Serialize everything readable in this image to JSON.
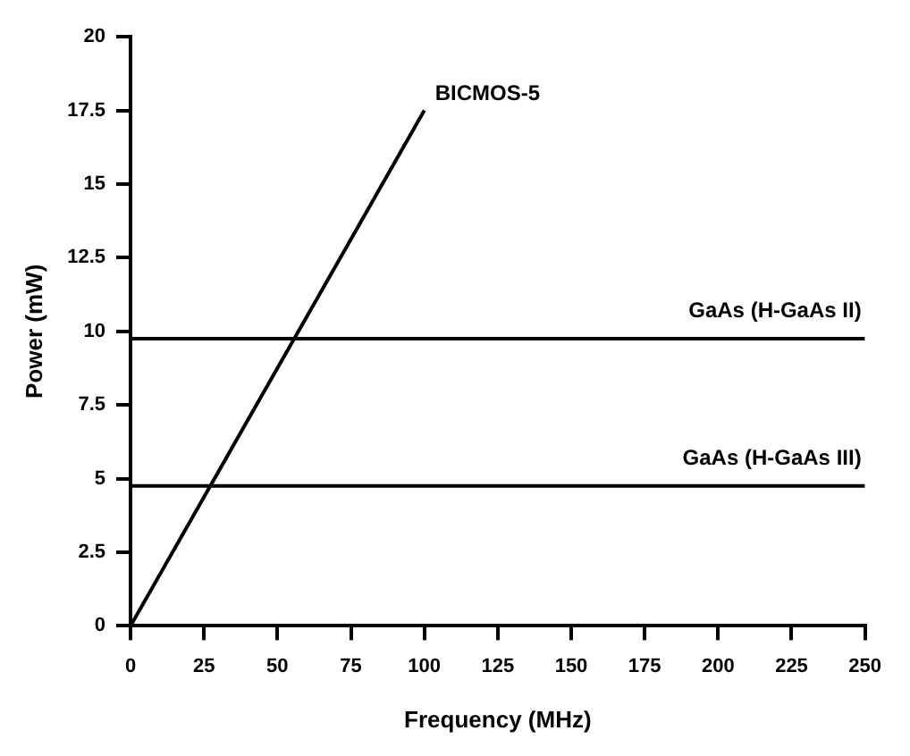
{
  "chart_data": {
    "type": "line",
    "xlabel": "Frequency (MHz)",
    "ylabel": "Power (mW)",
    "xlim": [
      0,
      250
    ],
    "xticks": [
      0,
      25,
      50,
      75,
      100,
      125,
      150,
      175,
      200,
      225,
      250
    ],
    "ylim": [
      0,
      20
    ],
    "yticks": [
      0,
      2.5,
      5,
      7.5,
      10,
      12.5,
      15,
      17.5,
      20
    ],
    "grid": false,
    "legend": false,
    "marker": "none",
    "line_style": "solid",
    "series": [
      {
        "name": "BICMOS-5",
        "color": "#000000",
        "x": [
          0,
          100
        ],
        "values": [
          0,
          17.5
        ]
      },
      {
        "name": "GaAs (H-GaAs II)",
        "color": "#000000",
        "x": [
          0,
          250
        ],
        "values": [
          9.75,
          9.75
        ]
      },
      {
        "name": "GaAs (H-GaAs III)",
        "color": "#000000",
        "x": [
          0,
          250
        ],
        "values": [
          4.75,
          4.75
        ]
      }
    ]
  }
}
